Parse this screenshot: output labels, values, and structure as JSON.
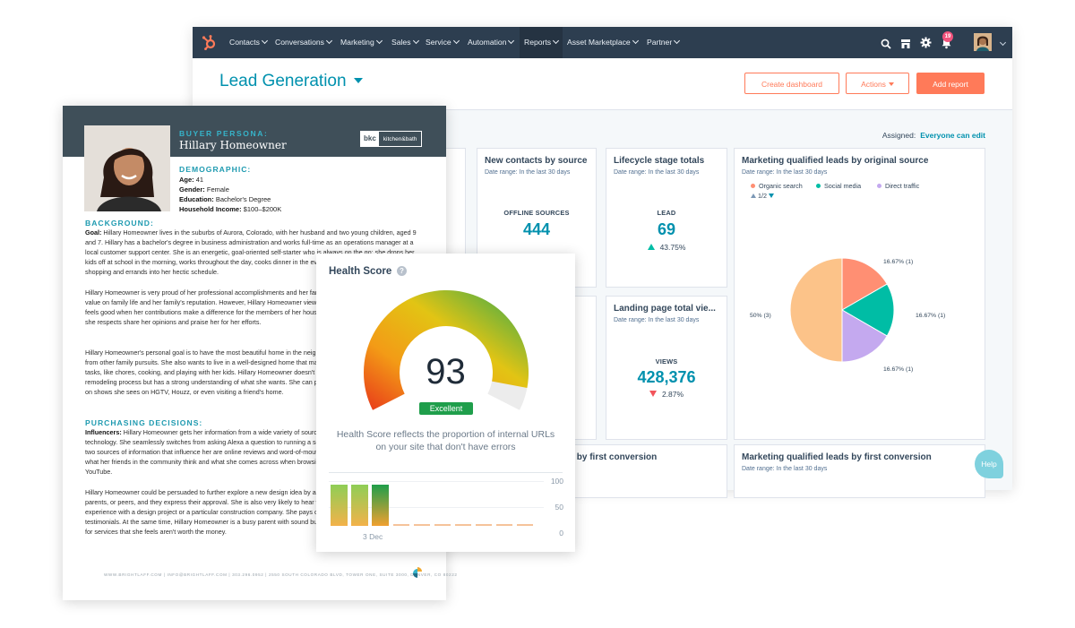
{
  "nav": {
    "items": [
      "Contacts",
      "Conversations",
      "Marketing",
      "Sales",
      "Service",
      "Automation",
      "Reports",
      "Asset Marketplace",
      "Partner"
    ],
    "active": "Reports",
    "notification_count": "19",
    "icons": [
      "sprocket-logo-icon",
      "search-icon",
      "marketplace-icon",
      "gear-icon",
      "bell-icon"
    ]
  },
  "dashboard": {
    "title": "Lead Generation",
    "buttons": {
      "create": "Create dashboard",
      "actions": "Actions",
      "add": "Add report"
    },
    "assigned_label": "Assigned:",
    "assigned_value": "Everyone can edit"
  },
  "cards": {
    "new_contacts": {
      "title": "New contacts by source",
      "range": "Date range: In the last 30 days",
      "metric_label": "OFFLINE SOURCES",
      "metric_value": "444"
    },
    "lifecycle": {
      "title": "Lifecycle stage totals",
      "range": "Date range: In the last 30 days",
      "metric_label": "LEAD",
      "metric_value": "69",
      "change": "43.75%",
      "direction": "up"
    },
    "landing": {
      "title": "Landing page total vie...",
      "range": "Date range: In the last 30 days",
      "metric_label": "VIEWS",
      "metric_value": "428,376",
      "change": "2.87%",
      "direction": "down"
    },
    "mql_source": {
      "title": "Marketing qualified leads by original source",
      "range": "Date range: In the last 30 days",
      "pager": "1/2"
    },
    "partial_bottom": {
      "title": "...ns by first conversion"
    },
    "mql_first": {
      "title": "Marketing qualified leads by first conversion",
      "range": "Date range: In the last 30 days"
    }
  },
  "chart_data": {
    "type": "pie",
    "legend": [
      "Organic search",
      "Social media",
      "Direct traffic"
    ],
    "slices": [
      {
        "name": "Organic search",
        "label": "16.67% (1)",
        "percent": 16.67,
        "count": 1,
        "color": "#ff8f73"
      },
      {
        "name": "Social media",
        "label": "16.67% (1)",
        "percent": 16.67,
        "count": 1,
        "color": "#00bda5"
      },
      {
        "name": "Direct traffic",
        "label": "16.67% (1)",
        "percent": 16.67,
        "count": 1,
        "color": "#c4a9ef"
      },
      {
        "name": "",
        "label": "50% (3)",
        "percent": 50,
        "count": 3,
        "color": "#fcc389"
      }
    ],
    "legend_placement": "top-left"
  },
  "help": "Help",
  "persona": {
    "eyebrow": "BUYER PERSONA:",
    "name": "Hillary Homeowner",
    "logo_mark": "bkc",
    "logo_text": "kitchen&bath",
    "demo_heading": "DEMOGRAPHIC:",
    "age": {
      "label": "Age:",
      "value": "41"
    },
    "gender": {
      "label": "Gender:",
      "value": "Female"
    },
    "education": {
      "label": "Education:",
      "value": "Bachelor's Degree"
    },
    "income": {
      "label": "Household Income:",
      "value": "$100–$200K"
    },
    "background_heading": "BACKGROUND:",
    "goal_label": "Goal:",
    "goal_text": " Hillary Homeowner lives in the suburbs of Aurora, Colorado, with her husband and two young children, aged 9 and 7. Hillary has a bachelor's degree in business administration and works full-time as an operations manager at a local customer support center. She is an energetic, goal-oriented self-starter who is always on the go: she drops her kids off at school in the morning, works throughout the day, cooks dinner in the evening, and somehow finds time to fit shopping and errands into her hectic schedule.",
    "para2": "Hillary Homeowner is very proud of her professional accomplishments and her family. However, she places a higher value on family life and her family's reputation. However, Hillary Homeowner views her work as a means to an end and feels good when her contributions make a difference for the members of her household. She feels happiest when those she respects share her opinions and praise her for her efforts.",
    "para3": "Hillary Homeowner's personal goal is to have the most beautiful home in the neighborhood in a way that won't detract from other family pursuits. She also wants to live in a well-designed home that makes it easier for her to perform daily tasks, like chores, cooking, and playing with her kids. Hillary Homeowner doesn't understand the kitchen and bath remodeling process but has a strong understanding of what she wants. She can point out design features she enjoys on shows she sees on HGTV, Houzz, or even visiting a friend's home.",
    "purchasing_heading": "PURCHASING DECISIONS:",
    "influencers_label": "Influencers:",
    "influencers_text": " Hillary Homeowner gets her information from a wide variety of sources and enjoys using the latest technology. She seamlessly switches from asking Alexa a question to running a search on her desktop computer. The two sources of information that influence her are online reviews and word-of-mouth referrals. She is very interested in what her friends in the community think and what she comes across when browsing Facebook, Instagram, and YouTube.",
    "para5": "Hillary Homeowner could be persuaded to further explore a new design idea by a suggestion from her husband, parents, or peers, and they express their approval. She is also very likely to hear what others have to say about their experience with a design project or a particular construction company. She pays close attention to online reviews and testimonials. At the same time, Hillary Homeowner is a busy parent with sound business sense and is unwilling to pay for services that she feels aren't worth the money.",
    "footer": "WWW.BRIGHTLAFF.COM  |  INFO@BRIGHTLAFF.COM  |  303.296.0952  |  2550 SOUTH COLORADO BLVD, TOWER ONE, SUITE 3000, DENVER, CO 80222"
  },
  "health": {
    "title": "Health Score",
    "score": "93",
    "score_value": 93,
    "rating": "Excellent",
    "description": "Health Score reflects the proportion of internal URLs on your site that don't have errors",
    "axis": [
      "100",
      "50",
      "0"
    ],
    "date": "3 Dec",
    "history": [
      93,
      93,
      93
    ],
    "colors": {
      "badge": "#1f9e4b"
    }
  }
}
